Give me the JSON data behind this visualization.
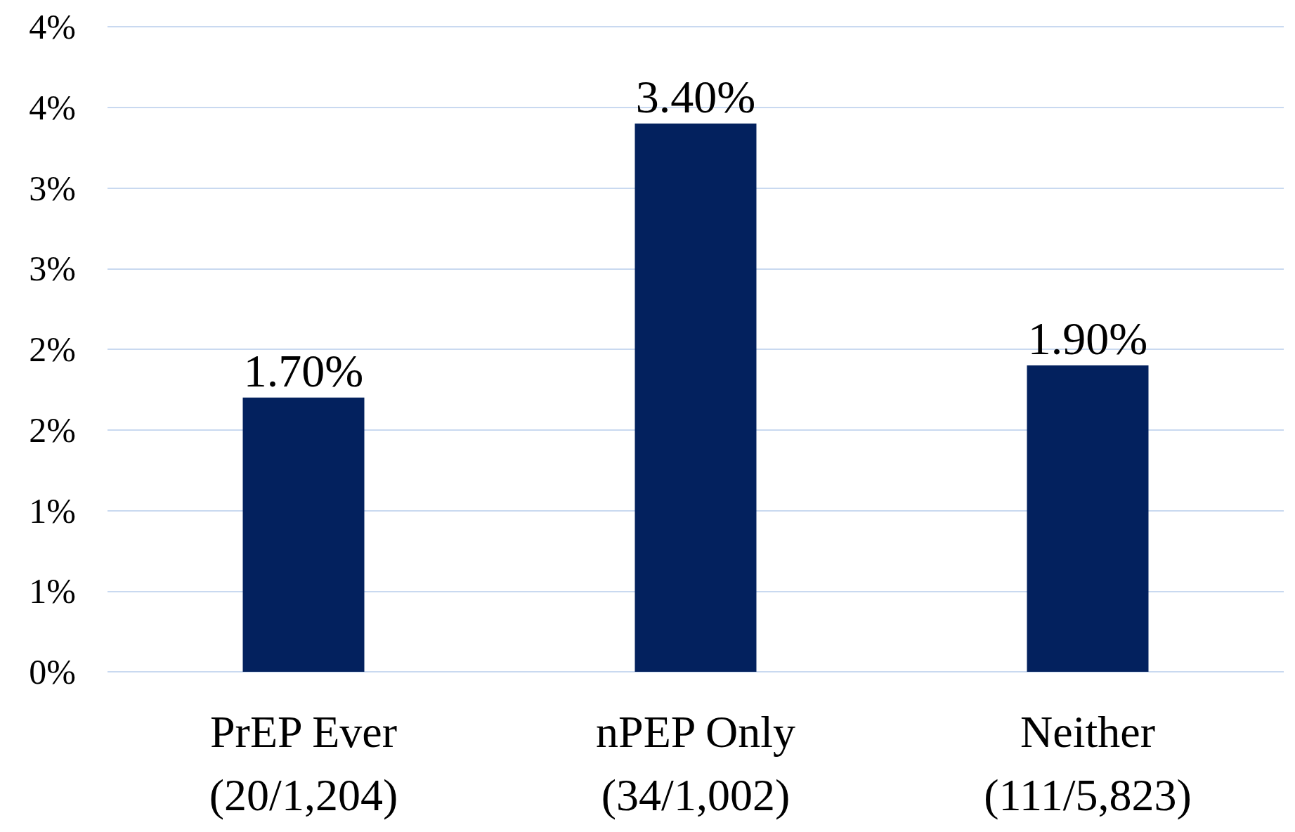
{
  "chart_data": {
    "type": "bar",
    "categories": [
      "PrEP Ever\n(20/1,204)",
      "nPEP Only\n(34/1,002)",
      "Neither\n(111/5,823)"
    ],
    "values": [
      1.7,
      3.4,
      1.9
    ],
    "value_labels": [
      "1.70%",
      "3.40%",
      "1.90%"
    ],
    "color": "#03215e",
    "ylim": [
      0,
      4
    ],
    "yticks": [
      {
        "value": 0,
        "label": "0%"
      },
      {
        "value": 0.5,
        "label": "1%"
      },
      {
        "value": 1,
        "label": "1%"
      },
      {
        "value": 1.5,
        "label": "2%"
      },
      {
        "value": 2,
        "label": "2%"
      },
      {
        "value": 2.5,
        "label": "3%"
      },
      {
        "value": 3,
        "label": "3%"
      },
      {
        "value": 3.5,
        "label": "4%"
      },
      {
        "value": 4,
        "label": "4%"
      }
    ],
    "grid": "y"
  }
}
